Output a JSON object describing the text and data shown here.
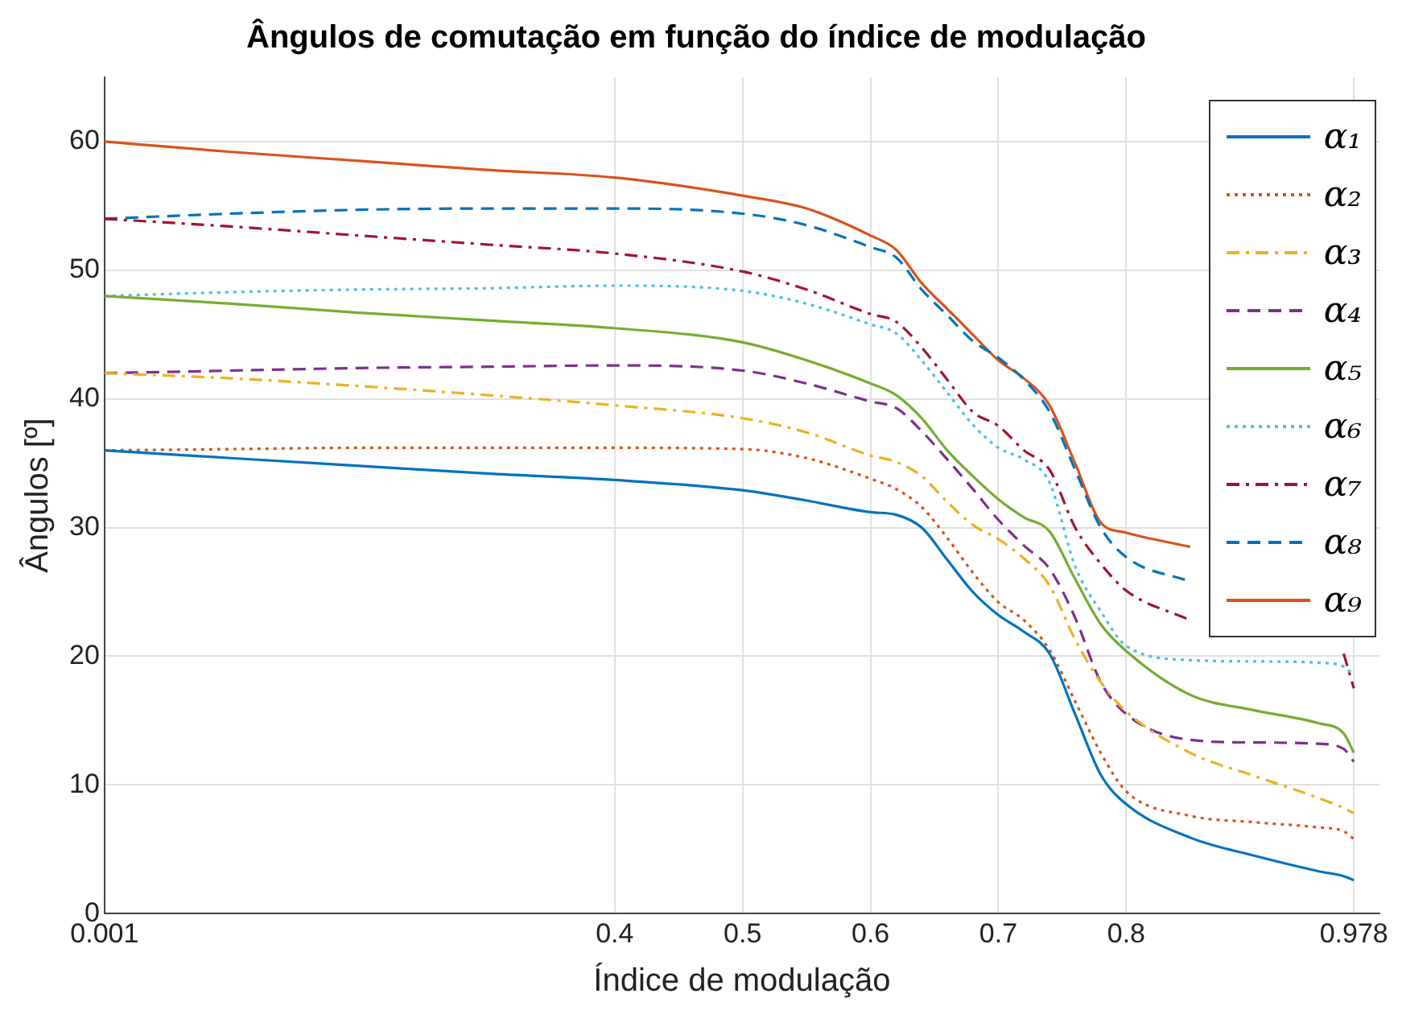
{
  "chart_data": {
    "type": "line",
    "title": "Ângulos de comutação em função do índice de modulação",
    "xlabel": "Índice de modulação",
    "ylabel": "Ângulos [º]",
    "x": [
      0.001,
      0.1,
      0.2,
      0.3,
      0.4,
      0.5,
      0.55,
      0.6,
      0.62,
      0.64,
      0.66,
      0.68,
      0.7,
      0.72,
      0.74,
      0.76,
      0.78,
      0.8,
      0.85,
      0.9,
      0.95,
      0.97,
      0.978
    ],
    "xlim": [
      0.001,
      0.998
    ],
    "xticks": [
      0.001,
      0.4,
      0.5,
      0.6,
      0.7,
      0.8,
      0.978
    ],
    "ylim": [
      0,
      65
    ],
    "yticks": [
      0,
      10,
      20,
      30,
      40,
      50,
      60
    ],
    "grid": true,
    "legend": "top right",
    "series": [
      {
        "name": "α₁",
        "color": "#0072bd",
        "line_style": "solid",
        "values": [
          36,
          35.4,
          34.8,
          34.2,
          33.7,
          32.9,
          32.1,
          31.2,
          31.0,
          30.0,
          27.5,
          25.0,
          23.2,
          21.9,
          20.2,
          15.5,
          10.8,
          8.5,
          5.9,
          4.5,
          3.3,
          2.9,
          2.6
        ]
      },
      {
        "name": "α₂",
        "color": "#d95319",
        "line_style": "dotted",
        "values": [
          36,
          36.1,
          36.2,
          36.2,
          36.2,
          36.1,
          35.4,
          33.8,
          33.0,
          31.6,
          29.2,
          26.5,
          24.2,
          22.8,
          20.5,
          16.5,
          12.5,
          9.5,
          7.6,
          7.1,
          6.7,
          6.4,
          5.8
        ]
      },
      {
        "name": "α₃",
        "color": "#edb120",
        "line_style": "dashdot",
        "values": [
          42,
          41.6,
          41.0,
          40.3,
          39.5,
          38.5,
          37.4,
          35.6,
          35.1,
          34.0,
          32.0,
          30.2,
          29.1,
          27.6,
          25.5,
          21.3,
          18.0,
          15.7,
          12.5,
          10.7,
          9.0,
          8.2,
          7.8
        ]
      },
      {
        "name": "α₄",
        "color": "#7e2f8e",
        "line_style": "dashed",
        "values": [
          42,
          42.2,
          42.4,
          42.5,
          42.6,
          42.2,
          41.2,
          39.8,
          39.3,
          37.5,
          35.3,
          33.0,
          30.6,
          28.6,
          26.8,
          23.0,
          18.0,
          15.5,
          13.5,
          13.3,
          13.2,
          12.8,
          11.8
        ]
      },
      {
        "name": "α₅",
        "color": "#77ac30",
        "line_style": "solid",
        "values": [
          48,
          47.4,
          46.7,
          46.1,
          45.5,
          44.4,
          43.0,
          41.2,
          40.3,
          38.5,
          36.0,
          34.0,
          32.2,
          30.8,
          29.7,
          26.0,
          22.5,
          20.4,
          17.0,
          15.8,
          14.8,
          14.0,
          12.5
        ]
      },
      {
        "name": "α₆",
        "color": "#4dbeee",
        "line_style": "dotted",
        "values": [
          48,
          48.3,
          48.5,
          48.6,
          48.8,
          48.4,
          47.4,
          45.8,
          45.1,
          43.0,
          40.5,
          38.0,
          36.2,
          35.3,
          33.5,
          27.0,
          23.5,
          20.8,
          19.7,
          19.6,
          19.5,
          19.2,
          18.5
        ]
      },
      {
        "name": "α₇",
        "color": "#a2142f",
        "line_style": "dashdot",
        "values": [
          54,
          53.4,
          52.7,
          52.0,
          51.3,
          49.9,
          48.5,
          46.6,
          46.0,
          44.0,
          41.5,
          39.0,
          37.9,
          36.0,
          34.5,
          30.0,
          27.2,
          25.1,
          22.8,
          null,
          null,
          20.2,
          17.5
        ]
      },
      {
        "name": "α₈",
        "color": "#0072bd",
        "line_style": "dashed",
        "values": [
          54,
          54.4,
          54.7,
          54.8,
          54.8,
          54.4,
          53.5,
          51.8,
          51.0,
          48.5,
          46.5,
          44.5,
          43.2,
          41.5,
          39.0,
          34.5,
          30.0,
          27.7,
          25.8,
          null,
          null,
          null,
          null
        ]
      },
      {
        "name": "α₉",
        "color": "#d95319",
        "line_style": "solid",
        "values": [
          60,
          59.2,
          58.5,
          57.8,
          57.2,
          55.8,
          54.8,
          52.7,
          51.6,
          49.0,
          47.0,
          45.0,
          43.0,
          41.6,
          39.5,
          35.0,
          30.4,
          29.6,
          28.5,
          null,
          null,
          null,
          null
        ]
      }
    ]
  }
}
